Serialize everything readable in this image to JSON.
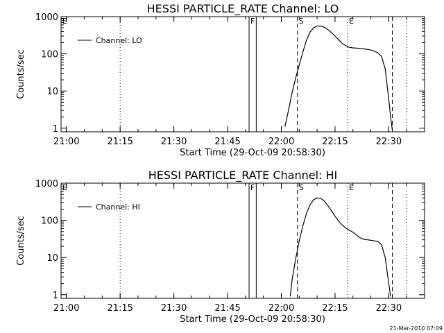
{
  "footer": {
    "timestamp": "21-Mar-2010 07:09"
  },
  "chart_data": [
    {
      "type": "line",
      "title": "HESSI PARTICLE_RATE Channel: LO",
      "xlabel": "Start Time (29-Oct-09 20:58:30)",
      "ylabel": "Counts/sec",
      "yscale": "log",
      "xlim": [
        "20:58:30",
        "22:40:00"
      ],
      "ylim": [
        0.8,
        1000
      ],
      "xticks": [
        "21:00",
        "21:15",
        "21:30",
        "21:45",
        "22:00",
        "22:15",
        "22:30"
      ],
      "yticks": [
        "1",
        "10",
        "100",
        "1000"
      ],
      "legend": {
        "placement": "top-left",
        "entries": [
          "Channel: LO"
        ]
      },
      "markers": [
        {
          "time": "21:51:00",
          "label": "F",
          "style": "solid"
        },
        {
          "time": "21:53:00",
          "label": "",
          "style": "solid"
        },
        {
          "time": "22:04:30",
          "label": "S",
          "style": "dashed"
        },
        {
          "time": "22:18:30",
          "label": "E",
          "style": "dotted"
        },
        {
          "time": "22:31:00",
          "label": "",
          "style": "dashed"
        },
        {
          "time": "22:35:00",
          "label": "",
          "style": "dotted"
        },
        {
          "time": "21:15:00",
          "label": "",
          "style": "dotted"
        },
        {
          "time": "20:58:30",
          "label": "E",
          "style": "dotted"
        }
      ],
      "series": [
        {
          "name": "Channel: LO",
          "x": [
            "22:01:00",
            "22:02:00",
            "22:03:00",
            "22:04:00",
            "22:05:00",
            "22:06:00",
            "22:07:00",
            "22:08:00",
            "22:09:00",
            "22:10:00",
            "22:11:00",
            "22:12:00",
            "22:13:00",
            "22:14:00",
            "22:15:00",
            "22:16:00",
            "22:17:00",
            "22:18:00",
            "22:19:00",
            "22:20:00",
            "22:21:00",
            "22:22:00",
            "22:23:00",
            "22:24:00",
            "22:25:00",
            "22:26:00",
            "22:27:00",
            "22:28:00",
            "22:29:00",
            "22:30:00",
            "22:30:30",
            "22:31:00"
          ],
          "y": [
            1.1,
            3,
            9,
            22,
            50,
            110,
            230,
            380,
            500,
            560,
            560,
            520,
            450,
            370,
            300,
            240,
            190,
            165,
            150,
            145,
            142,
            140,
            136,
            132,
            126,
            118,
            105,
            85,
            40,
            6,
            2,
            0.9
          ]
        }
      ]
    },
    {
      "type": "line",
      "title": "HESSI PARTICLE_RATE Channel: HI",
      "xlabel": "Start Time (29-Oct-09 20:58:30)",
      "ylabel": "Counts/sec",
      "yscale": "log",
      "xlim": [
        "20:58:30",
        "22:40:00"
      ],
      "ylim": [
        0.8,
        1000
      ],
      "xticks": [
        "21:00",
        "21:15",
        "21:30",
        "21:45",
        "22:00",
        "22:15",
        "22:30"
      ],
      "yticks": [
        "1",
        "10",
        "100",
        "1000"
      ],
      "legend": {
        "placement": "top-left",
        "entries": [
          "Channel: HI"
        ]
      },
      "markers": [
        {
          "time": "21:51:00",
          "label": "F",
          "style": "solid"
        },
        {
          "time": "21:53:00",
          "label": "",
          "style": "solid"
        },
        {
          "time": "22:04:30",
          "label": "S",
          "style": "dashed"
        },
        {
          "time": "22:18:30",
          "label": "E",
          "style": "dotted"
        },
        {
          "time": "22:31:00",
          "label": "",
          "style": "dashed"
        },
        {
          "time": "22:35:00",
          "label": "",
          "style": "dotted"
        },
        {
          "time": "21:15:00",
          "label": "",
          "style": "dotted"
        },
        {
          "time": "20:58:30",
          "label": "E",
          "style": "dotted"
        }
      ],
      "series": [
        {
          "name": "Channel: HI",
          "x": [
            "22:02:30",
            "22:03:00",
            "22:04:00",
            "22:05:00",
            "22:06:00",
            "22:07:00",
            "22:08:00",
            "22:09:00",
            "22:10:00",
            "22:11:00",
            "22:12:00",
            "22:13:00",
            "22:14:00",
            "22:15:00",
            "22:16:00",
            "22:17:00",
            "22:18:00",
            "22:19:00",
            "22:20:00",
            "22:21:00",
            "22:22:00",
            "22:23:00",
            "22:24:00",
            "22:25:00",
            "22:26:00",
            "22:27:00",
            "22:28:00",
            "22:29:00",
            "22:30:00",
            "22:30:30"
          ],
          "y": [
            0.9,
            2.5,
            9,
            28,
            70,
            150,
            260,
            360,
            400,
            390,
            330,
            250,
            180,
            130,
            95,
            75,
            62,
            54,
            48,
            40,
            34,
            31,
            30,
            29,
            28,
            27,
            22,
            10,
            2,
            0.9
          ]
        }
      ]
    }
  ]
}
